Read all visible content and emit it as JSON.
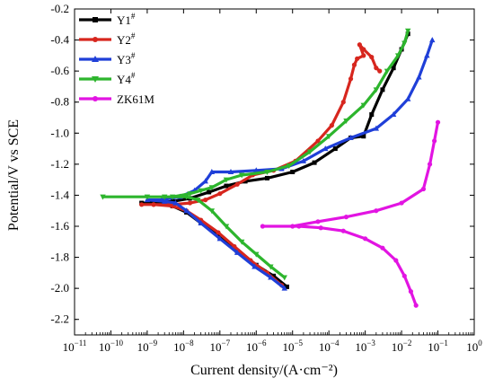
{
  "chart_data": {
    "type": "line",
    "title": "",
    "xlabel": "Current density/(A·cm⁻²)",
    "ylabel": "Potential/V vs SCE",
    "x_scale": "log",
    "xlim": [
      1e-11,
      1
    ],
    "ylim": [
      -2.3,
      -0.2
    ],
    "x_tick_exponents": [
      -11,
      -10,
      -9,
      -8,
      -7,
      -6,
      -5,
      -4,
      -3,
      -2,
      -1,
      0
    ],
    "y_ticks": [
      -0.2,
      -0.4,
      -0.6,
      -0.8,
      -1.0,
      -1.2,
      -1.4,
      -1.6,
      -1.8,
      -2.0,
      -2.2
    ],
    "y_tick_labels": [
      "-0.2",
      "-0.4",
      "-0.6",
      "-0.8",
      "-1.0",
      "-1.2",
      "-1.4",
      "-1.6",
      "-1.8",
      "-2.0",
      "-2.2"
    ],
    "legend_position": "top-left",
    "series": [
      {
        "name": "Y1#",
        "label_base": "Y1",
        "label_sup": "#",
        "color": "#000000",
        "marker": "square",
        "points": [
          [
            7e-06,
            -1.99
          ],
          [
            3e-06,
            -1.92
          ],
          [
            1e-06,
            -1.85
          ],
          [
            3e-07,
            -1.76
          ],
          [
            1e-07,
            -1.67
          ],
          [
            3e-08,
            -1.58
          ],
          [
            1.2e-08,
            -1.51
          ],
          [
            5e-09,
            -1.47
          ],
          [
            1.5e-09,
            -1.45
          ],
          [
            7e-10,
            -1.45
          ],
          [
            1.2e-09,
            -1.45
          ],
          [
            5e-09,
            -1.44
          ],
          [
            1.5e-08,
            -1.42
          ],
          [
            5e-08,
            -1.38
          ],
          [
            1.5e-07,
            -1.34
          ],
          [
            5e-07,
            -1.31
          ],
          [
            2e-06,
            -1.29
          ],
          [
            1e-05,
            -1.25
          ],
          [
            4e-05,
            -1.19
          ],
          [
            0.00015,
            -1.1
          ],
          [
            0.0004,
            -1.03
          ],
          [
            0.0009,
            -1.02
          ],
          [
            0.0015,
            -0.88
          ],
          [
            0.003,
            -0.72
          ],
          [
            0.006,
            -0.58
          ],
          [
            0.01,
            -0.46
          ],
          [
            0.015,
            -0.36
          ]
        ]
      },
      {
        "name": "Y2#",
        "label_base": "Y2",
        "label_sup": "#",
        "color": "#d7261e",
        "marker": "circle",
        "points": [
          [
            5e-06,
            -1.98
          ],
          [
            2e-06,
            -1.9
          ],
          [
            7e-07,
            -1.82
          ],
          [
            2.5e-07,
            -1.73
          ],
          [
            9e-08,
            -1.64
          ],
          [
            3e-08,
            -1.56
          ],
          [
            1.2e-08,
            -1.5
          ],
          [
            5e-09,
            -1.47
          ],
          [
            1.5e-09,
            -1.46
          ],
          [
            7e-10,
            -1.46
          ],
          [
            1.5e-09,
            -1.46
          ],
          [
            5e-09,
            -1.46
          ],
          [
            1.5e-08,
            -1.45
          ],
          [
            4e-08,
            -1.43
          ],
          [
            1e-07,
            -1.39
          ],
          [
            3e-07,
            -1.33
          ],
          [
            8e-07,
            -1.27
          ],
          [
            3e-06,
            -1.24
          ],
          [
            1.2e-05,
            -1.18
          ],
          [
            5e-05,
            -1.05
          ],
          [
            0.00012,
            -0.95
          ],
          [
            0.00025,
            -0.8
          ],
          [
            0.0004,
            -0.65
          ],
          [
            0.0005,
            -0.56
          ],
          [
            0.0006,
            -0.52
          ],
          [
            0.0009,
            -0.5
          ],
          [
            0.0007,
            -0.43
          ],
          [
            0.0009,
            -0.46
          ],
          [
            0.0015,
            -0.51
          ],
          [
            0.002,
            -0.58
          ],
          [
            0.0025,
            -0.6
          ]
        ]
      },
      {
        "name": "Y3#",
        "label_base": "Y3",
        "label_sup": "#",
        "color": "#1f3fd8",
        "marker": "triangle-up",
        "points": [
          [
            6e-06,
            -2.0
          ],
          [
            2.5e-06,
            -1.93
          ],
          [
            9e-07,
            -1.86
          ],
          [
            3e-07,
            -1.77
          ],
          [
            1e-07,
            -1.68
          ],
          [
            3e-08,
            -1.58
          ],
          [
            1.2e-08,
            -1.5
          ],
          [
            6e-09,
            -1.45
          ],
          [
            3e-09,
            -1.44
          ],
          [
            1e-09,
            -1.43
          ],
          [
            2.5e-09,
            -1.43
          ],
          [
            8e-09,
            -1.41
          ],
          [
            2e-08,
            -1.37
          ],
          [
            4e-08,
            -1.31
          ],
          [
            6e-08,
            -1.25
          ],
          [
            2e-07,
            -1.25
          ],
          [
            1e-06,
            -1.24
          ],
          [
            5e-06,
            -1.23
          ],
          [
            2e-05,
            -1.18
          ],
          [
            8e-05,
            -1.1
          ],
          [
            0.0004,
            -1.03
          ],
          [
            0.002,
            -0.97
          ],
          [
            0.006,
            -0.88
          ],
          [
            0.015,
            -0.78
          ],
          [
            0.03,
            -0.64
          ],
          [
            0.05,
            -0.5
          ],
          [
            0.07,
            -0.4
          ]
        ]
      },
      {
        "name": "Y4#",
        "label_base": "Y4",
        "label_sup": "#",
        "color": "#2db52d",
        "marker": "triangle-down",
        "points": [
          [
            6e-06,
            -1.93
          ],
          [
            2.5e-06,
            -1.86
          ],
          [
            1e-06,
            -1.78
          ],
          [
            4e-07,
            -1.7
          ],
          [
            1.5e-07,
            -1.6
          ],
          [
            6e-08,
            -1.5
          ],
          [
            2.5e-08,
            -1.43
          ],
          [
            1.2e-08,
            -1.41
          ],
          [
            3e-09,
            -1.41
          ],
          [
            6e-11,
            -1.41
          ],
          [
            1e-09,
            -1.41
          ],
          [
            5e-09,
            -1.41
          ],
          [
            1.5e-08,
            -1.39
          ],
          [
            3e-08,
            -1.37
          ],
          [
            6e-08,
            -1.35
          ],
          [
            1.5e-07,
            -1.3
          ],
          [
            4e-07,
            -1.27
          ],
          [
            2e-06,
            -1.25
          ],
          [
            8e-06,
            -1.21
          ],
          [
            3e-05,
            -1.12
          ],
          [
            0.0001,
            -1.02
          ],
          [
            0.0003,
            -0.92
          ],
          [
            0.0009,
            -0.82
          ],
          [
            0.002,
            -0.72
          ],
          [
            0.004,
            -0.6
          ],
          [
            0.008,
            -0.5
          ],
          [
            0.012,
            -0.42
          ],
          [
            0.015,
            -0.34
          ]
        ]
      },
      {
        "name": "ZK61M",
        "label_base": "ZK61M",
        "label_sup": "",
        "color": "#e214e2",
        "marker": "circle",
        "points": [
          [
            0.025,
            -2.11
          ],
          [
            0.018,
            -2.02
          ],
          [
            0.012,
            -1.92
          ],
          [
            0.007,
            -1.82
          ],
          [
            0.003,
            -1.74
          ],
          [
            0.001,
            -1.68
          ],
          [
            0.00025,
            -1.63
          ],
          [
            6e-05,
            -1.61
          ],
          [
            1.5e-05,
            -1.6
          ],
          [
            1.5e-06,
            -1.6
          ],
          [
            1e-05,
            -1.6
          ],
          [
            5e-05,
            -1.57
          ],
          [
            0.0003,
            -1.54
          ],
          [
            0.002,
            -1.5
          ],
          [
            0.01,
            -1.45
          ],
          [
            0.04,
            -1.36
          ],
          [
            0.06,
            -1.2
          ],
          [
            0.08,
            -1.05
          ],
          [
            0.1,
            -0.93
          ]
        ]
      }
    ]
  }
}
